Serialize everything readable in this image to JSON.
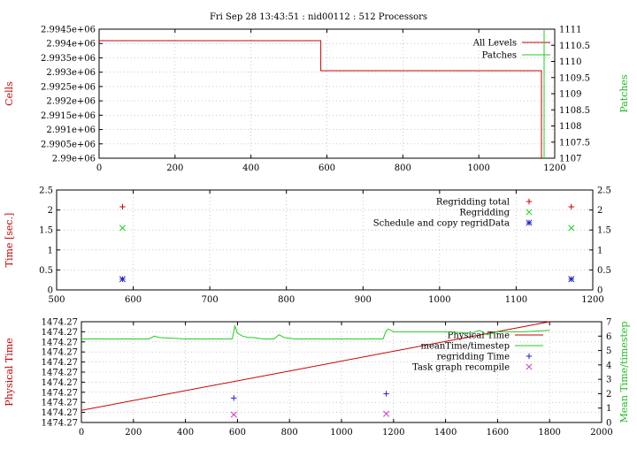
{
  "page_title": "Fri Sep 28 13:43:51 : nid00112 : 512 Processors",
  "colors": {
    "red": "#cc0000",
    "green": "#22cc22",
    "blue": "#2222cc",
    "magenta": "#cc33cc",
    "grid": "#aaaaaa"
  },
  "chart_data": [
    {
      "type": "line",
      "ylabel": "Cells",
      "y2label": "Patches",
      "xlim": [
        0,
        1200
      ],
      "ylim": [
        2990000,
        2994500
      ],
      "y2lim": [
        1107,
        1111
      ],
      "xticks": [
        "0",
        "200",
        "400",
        "600",
        "800",
        "1000",
        "1200"
      ],
      "xtick_values": [
        0,
        200,
        400,
        600,
        800,
        1000,
        1200
      ],
      "yticks": [
        "2.99e+06",
        "2.9905e+06",
        "2.991e+06",
        "2.9915e+06",
        "2.992e+06",
        "2.9925e+06",
        "2.993e+06",
        "2.9935e+06",
        "2.994e+06",
        "2.9945e+06"
      ],
      "ytick_values": [
        2990000,
        2990500,
        2991000,
        2991500,
        2992000,
        2992500,
        2993000,
        2993500,
        2994000,
        2994500
      ],
      "y2ticks": [
        "1107",
        "1107.5",
        "1108",
        "1108.5",
        "1109",
        "1109.5",
        "1110",
        "1110.5",
        "1111"
      ],
      "y2tick_values": [
        1107,
        1107.5,
        1108,
        1108.5,
        1109,
        1109.5,
        1110,
        1110.5,
        1111
      ],
      "legend": "top-right",
      "series": [
        {
          "name": "All Levels",
          "axis": "y",
          "style": "line",
          "color": "#cc0000",
          "x": [
            0,
            584,
            584,
            1165,
            1165
          ],
          "y": [
            2994100,
            2994100,
            2993050,
            2993050,
            2990000
          ]
        },
        {
          "name": "Patches",
          "axis": "y2",
          "style": "line",
          "color": "#22cc22",
          "x": [
            1172,
            1172
          ],
          "y": [
            1107,
            1111
          ]
        }
      ]
    },
    {
      "type": "scatter",
      "ylabel": "Time [sec.]",
      "xlim": [
        500,
        1200
      ],
      "ylim": [
        0,
        2.5
      ],
      "y2lim": [
        0,
        2.5
      ],
      "xticks": [
        "500",
        "600",
        "700",
        "800",
        "900",
        "1000",
        "1100",
        "1200"
      ],
      "xtick_values": [
        500,
        600,
        700,
        800,
        900,
        1000,
        1100,
        1200
      ],
      "yticks": [
        "0",
        "0.5",
        "1",
        "1.5",
        "2",
        "2.5"
      ],
      "ytick_values": [
        0,
        0.5,
        1,
        1.5,
        2,
        2.5
      ],
      "y2ticks": [
        "0",
        "0.5",
        "1",
        "1.5",
        "2",
        "2.5"
      ],
      "y2tick_values": [
        0,
        0.5,
        1,
        1.5,
        2,
        2.5
      ],
      "legend": "top-right",
      "series": [
        {
          "name": "Regridding total",
          "style": "plus",
          "color": "#cc0000",
          "x": [
            586,
            1172
          ],
          "y": [
            2.08,
            2.08
          ]
        },
        {
          "name": "Regridding",
          "style": "cross",
          "color": "#22cc22",
          "x": [
            586,
            1172
          ],
          "y": [
            1.55,
            1.55
          ]
        },
        {
          "name": "Schedule and copy regridData",
          "style": "star",
          "color": "#2222cc",
          "x": [
            586,
            1172
          ],
          "y": [
            0.27,
            0.27
          ]
        }
      ]
    },
    {
      "type": "line",
      "ylabel": "Physical Time",
      "y2label": "Mean Time/timestep",
      "xlim": [
        0,
        2000
      ],
      "ylim": [
        0,
        10
      ],
      "y2lim": [
        0,
        7
      ],
      "xticks": [
        "0",
        "200",
        "400",
        "600",
        "800",
        "1000",
        "1200",
        "1400",
        "1600",
        "1800",
        "2000"
      ],
      "xtick_values": [
        0,
        200,
        400,
        600,
        800,
        1000,
        1200,
        1400,
        1600,
        1800,
        2000
      ],
      "yticks": [
        "1474.27",
        "1474.27",
        "1474.27",
        "1474.27",
        "1474.27",
        "1474.27",
        "1474.27",
        "1474.27",
        "1474.27",
        "1474.27",
        "1474.27"
      ],
      "ytick_values": [
        0,
        1,
        2,
        3,
        4,
        5,
        6,
        7,
        8,
        9,
        10
      ],
      "y2ticks": [
        "0",
        "1",
        "2",
        "3",
        "4",
        "5",
        "6",
        "7"
      ],
      "y2tick_values": [
        0,
        1,
        2,
        3,
        4,
        5,
        6,
        7
      ],
      "legend": "top-right",
      "series": [
        {
          "name": "Physical Time",
          "axis": "y",
          "style": "line",
          "color": "#cc0000",
          "x": [
            0,
            1800
          ],
          "y": [
            1.2,
            10
          ]
        },
        {
          "name": "meanTime/timestep",
          "axis": "y2",
          "style": "line",
          "color": "#22cc22",
          "x": [
            0,
            200,
            260,
            280,
            300,
            400,
            500,
            580,
            590,
            600,
            620,
            640,
            660,
            700,
            740,
            760,
            780,
            820,
            900,
            1000,
            1100,
            1160,
            1170,
            1180,
            1200,
            1300,
            1400,
            1500,
            1530,
            1560,
            1600,
            1650,
            1700,
            1800
          ],
          "y": [
            5.8,
            5.8,
            5.8,
            6.0,
            5.9,
            5.8,
            5.8,
            5.8,
            6.7,
            6.2,
            6.0,
            5.9,
            5.9,
            5.8,
            5.8,
            6.1,
            5.9,
            5.8,
            5.8,
            5.8,
            5.8,
            5.8,
            6.3,
            6.5,
            6.3,
            6.3,
            6.3,
            6.2,
            6.4,
            6.1,
            6.3,
            6.3,
            6.3,
            6.4
          ]
        },
        {
          "name": "regridding Time",
          "axis": "y2",
          "style": "plus",
          "color": "#2222cc",
          "x": [
            586,
            1172
          ],
          "y": [
            1.7,
            2.0
          ]
        },
        {
          "name": "Task graph recompile",
          "axis": "y2",
          "style": "cross",
          "color": "#cc33cc",
          "x": [
            586,
            1172
          ],
          "y": [
            0.55,
            0.6
          ]
        }
      ]
    }
  ]
}
